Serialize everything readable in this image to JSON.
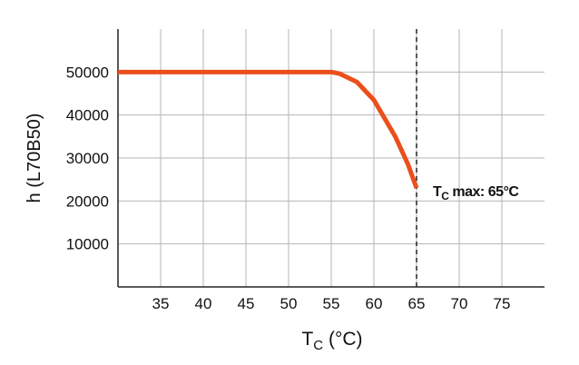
{
  "chart_data": {
    "type": "line",
    "x": [
      30,
      35,
      40,
      45,
      50,
      55,
      56,
      58,
      60,
      62.5,
      64,
      65
    ],
    "series": [
      {
        "color": "#ea4f1c",
        "values": [
          50000,
          50000,
          50000,
          50000,
          50000,
          50000,
          49600,
          47700,
          43500,
          35000,
          28500,
          23000
        ]
      }
    ],
    "xlim": [
      30,
      80
    ],
    "xticks": [
      35,
      40,
      45,
      50,
      55,
      60,
      65,
      70,
      75
    ],
    "ylim": [
      0,
      60000
    ],
    "yticks": [
      10000,
      20000,
      30000,
      40000,
      50000
    ],
    "grid": true,
    "ylabel": "h (L70B50)",
    "xlabel": {
      "main": "T",
      "sub": "C",
      "rest": " (°C)"
    },
    "vline": {
      "value": 65,
      "main": "T",
      "sub": "C",
      "rest": " max: 65°C"
    }
  }
}
